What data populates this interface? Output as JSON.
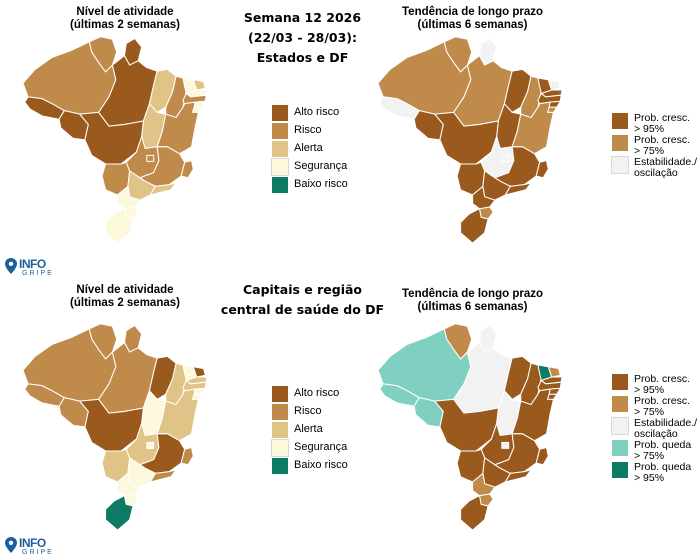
{
  "colors": {
    "alto_risco": "#9a5a1e",
    "risco": "#c08a4a",
    "alerta": "#e0c386",
    "seguranca": "#fcf8dc",
    "baixo_risco": "#0d7a64",
    "prob_cresc_95": "#9a5a1e",
    "prob_cresc_75": "#c08a4a",
    "estabilidade": "#f2f2f2",
    "prob_queda_75": "#7fd0c0",
    "prob_queda_95": "#0d7a64"
  },
  "top": {
    "left_title": [
      "Nível de atividade",
      "(últimas 2 semanas)"
    ],
    "center_title": [
      "Semana 12 2026",
      "(22/03 - 28/03):",
      "Estados e DF"
    ],
    "right_title": [
      "Tendência de longo prazo",
      "(últimas 6 semanas)"
    ],
    "activity_regions": {
      "rr": "risco",
      "ap": "alto_risco",
      "am": "risco",
      "pa": "alto_risco",
      "ma": "alerta",
      "pi": "risco",
      "ce": "seguranca",
      "rn": "alerta",
      "pb": "seguranca",
      "pe": "risco",
      "al": "seguranca",
      "se": "seguranca",
      "ac": "alto_risco",
      "ro": "alto_risco",
      "to": "alerta",
      "ba": "risco",
      "mt": "alto_risco",
      "go": "risco",
      "df": "risco",
      "mg": "risco",
      "es": "risco",
      "ms": "risco",
      "sp": "alerta",
      "rj": "alerta",
      "pr": "seguranca",
      "sc": "seguranca",
      "rs": "seguranca"
    },
    "trend_regions": {
      "rr": "prob_cresc_75",
      "ap": "estabilidade",
      "am": "prob_cresc_75",
      "pa": "prob_cresc_75",
      "ma": "prob_cresc_95",
      "pi": "prob_cresc_75",
      "ce": "prob_cresc_95",
      "rn": "estabilidade",
      "pb": "prob_cresc_95",
      "pe": "prob_cresc_95",
      "al": "prob_cresc_95",
      "se": "prob_cresc_75",
      "ac": "estabilidade",
      "ro": "prob_cresc_95",
      "to": "prob_cresc_95",
      "ba": "prob_cresc_75",
      "mt": "prob_cresc_95",
      "go": "estabilidade",
      "df": "estabilidade",
      "mg": "prob_cresc_95",
      "es": "prob_cresc_95",
      "ms": "prob_cresc_95",
      "sp": "prob_cresc_95",
      "rj": "prob_cresc_95",
      "pr": "prob_cresc_95",
      "sc": "prob_cresc_75",
      "rs": "prob_cresc_95"
    }
  },
  "bottom": {
    "left_title": [
      "Nível de atividade",
      "(últimas 2 semanas)"
    ],
    "center_title": [
      "Capitais e região",
      "central de saúde do DF"
    ],
    "right_title": [
      "Tendência de longo prazo",
      "(últimas 6 semanas)"
    ],
    "activity_regions": {
      "rr": "risco",
      "ap": "risco",
      "am": "risco",
      "pa": "risco",
      "ma": "alto_risco",
      "pi": "alerta",
      "ce": "seguranca",
      "rn": "alto_risco",
      "pb": "alerta",
      "pe": "alerta",
      "al": "seguranca",
      "se": "seguranca",
      "ac": "risco",
      "ro": "risco",
      "to": "seguranca",
      "ba": "alerta",
      "mt": "alto_risco",
      "go": "alerta",
      "df": "seguranca",
      "mg": "alto_risco",
      "es": "risco",
      "ms": "alerta",
      "sp": "seguranca",
      "rj": "risco",
      "pr": "seguranca",
      "sc": "seguranca",
      "rs": "baixo_risco"
    },
    "trend_regions": {
      "rr": "prob_cresc_75",
      "ap": "estabilidade",
      "am": "prob_queda_75",
      "pa": "estabilidade",
      "ma": "prob_cresc_95",
      "pi": "prob_cresc_95",
      "ce": "prob_queda_95",
      "rn": "prob_cresc_75",
      "pb": "prob_cresc_95",
      "pe": "prob_cresc_95",
      "al": "prob_cresc_95",
      "se": "prob_cresc_95",
      "ac": "prob_queda_75",
      "ro": "prob_queda_75",
      "to": "estabilidade",
      "ba": "prob_cresc_95",
      "mt": "prob_cresc_95",
      "go": "prob_cresc_95",
      "df": "estabilidade",
      "mg": "prob_cresc_95",
      "es": "prob_cresc_95",
      "ms": "prob_cresc_95",
      "sp": "prob_cresc_95",
      "rj": "prob_cresc_95",
      "pr": "prob_cresc_75",
      "sc": "prob_cresc_75",
      "rs": "prob_cresc_95"
    }
  },
  "activity_legend": [
    {
      "key": "alto_risco",
      "label": "Alto risco"
    },
    {
      "key": "risco",
      "label": "Risco"
    },
    {
      "key": "alerta",
      "label": "Alerta"
    },
    {
      "key": "seguranca",
      "label": "Segurança"
    },
    {
      "key": "baixo_risco",
      "label": "Baixo risco"
    }
  ],
  "trend_legend_top": [
    {
      "key": "prob_cresc_95",
      "lines": [
        "Prob. cresc.",
        "> 95%"
      ]
    },
    {
      "key": "prob_cresc_75",
      "lines": [
        "Prob. cresc.",
        "> 75%"
      ]
    },
    {
      "key": "estabilidade",
      "lines": [
        "Estabilidade./",
        "oscilação"
      ]
    }
  ],
  "trend_legend_bottom": [
    {
      "key": "prob_cresc_95",
      "lines": [
        "Prob. cresc.",
        "> 95%"
      ]
    },
    {
      "key": "prob_cresc_75",
      "lines": [
        "Prob. cresc.",
        "> 75%"
      ]
    },
    {
      "key": "estabilidade",
      "lines": [
        "Estabilidade./",
        "oscilação"
      ]
    },
    {
      "key": "prob_queda_75",
      "lines": [
        "Prob. queda",
        "> 75%"
      ]
    },
    {
      "key": "prob_queda_95",
      "lines": [
        "Prob. queda",
        "> 95%"
      ]
    }
  ],
  "logo": {
    "line1": "INFO",
    "line2": "GRIPE",
    "pin_icon": "map-pin-icon"
  }
}
